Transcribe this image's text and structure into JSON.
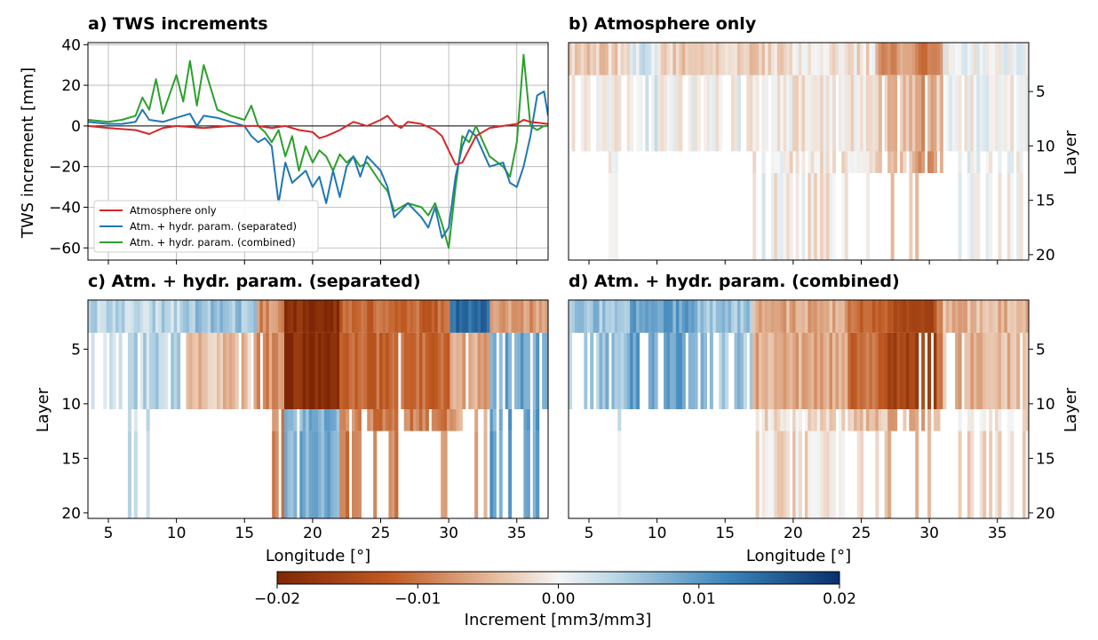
{
  "chart_data": [
    {
      "id": "a",
      "type": "line",
      "title": "a) TWS increments",
      "xlabel": "",
      "ylabel": "TWS increment [mm]",
      "xlim": [
        3.5,
        37.3
      ],
      "ylim": [
        -66,
        41
      ],
      "xticks": [
        5,
        10,
        15,
        20,
        25,
        30,
        35
      ],
      "yticks": [
        40,
        20,
        0,
        -20,
        -40,
        -60
      ],
      "ytick_labels": [
        "40",
        "20",
        "0",
        "−20",
        "−40",
        "−60"
      ],
      "grid": true,
      "zero_line": true,
      "legend_position": "lower-left",
      "series": [
        {
          "name": "Atmosphere only",
          "color": "#d62728",
          "x": [
            3.5,
            5,
            7,
            8,
            9,
            10,
            12,
            14,
            16,
            17,
            18,
            19,
            20,
            20.5,
            21,
            22,
            23,
            24,
            25,
            25.5,
            26,
            26.5,
            27,
            28,
            29,
            29.5,
            30,
            30.5,
            31,
            32,
            33,
            34,
            35,
            35.5,
            36,
            37.3
          ],
          "y": [
            0,
            -1,
            -2,
            -4,
            -1,
            0,
            -1,
            0,
            0,
            -1,
            0,
            -2,
            -3,
            -6,
            -5,
            -2,
            2,
            0,
            3,
            5,
            1,
            -1,
            2,
            1,
            -2,
            -5,
            -12,
            -19,
            -18,
            -5,
            -1,
            0,
            1,
            3,
            2,
            1
          ]
        },
        {
          "name": "Atm. + hydr. param. (separated)",
          "color": "#1f77b4",
          "x": [
            3.5,
            5,
            6,
            7,
            7.5,
            8,
            9,
            10,
            11,
            11.5,
            12,
            13,
            14,
            15,
            15.5,
            16,
            16.5,
            17,
            17.5,
            18,
            18.5,
            19,
            19.5,
            20,
            20.5,
            21,
            21.5,
            22,
            22.5,
            23,
            23.5,
            24,
            25,
            25.5,
            26,
            27,
            28,
            28.5,
            29,
            29.5,
            30,
            30.5,
            31,
            31.5,
            32,
            33,
            34,
            34.5,
            35,
            35.5,
            36,
            36.5,
            37,
            37.3
          ],
          "y": [
            2,
            1,
            1,
            2,
            8,
            3,
            2,
            4,
            6,
            0,
            5,
            4,
            2,
            0,
            -5,
            -8,
            -6,
            -10,
            -38,
            -18,
            -28,
            -25,
            -22,
            -30,
            -25,
            -38,
            -22,
            -35,
            -20,
            -15,
            -25,
            -15,
            -22,
            -30,
            -45,
            -38,
            -45,
            -50,
            -40,
            -55,
            -50,
            -25,
            -10,
            -2,
            -5,
            -20,
            -18,
            -28,
            -30,
            -20,
            -5,
            15,
            17,
            5
          ]
        },
        {
          "name": "Atm. + hydr. param. (combined)",
          "color": "#2ca02c",
          "x": [
            3.5,
            5,
            6,
            7,
            7.5,
            8,
            8.5,
            9,
            10,
            10.5,
            11,
            11.5,
            12,
            13,
            14,
            15,
            15.5,
            16,
            16.5,
            17,
            17.5,
            18,
            18.5,
            19,
            19.5,
            20,
            20.5,
            21,
            21.5,
            22,
            22.5,
            23,
            23.5,
            24,
            25,
            25.5,
            26,
            27,
            28,
            28.5,
            29,
            29.5,
            30,
            30.5,
            31,
            31.5,
            32,
            33,
            34,
            34.5,
            35,
            35.5,
            36,
            36.5,
            37,
            37.3
          ],
          "y": [
            3,
            2,
            3,
            5,
            14,
            8,
            23,
            6,
            25,
            12,
            32,
            10,
            30,
            8,
            5,
            3,
            10,
            0,
            -3,
            -8,
            -2,
            -15,
            -5,
            -22,
            -10,
            -18,
            -12,
            -15,
            -22,
            -14,
            -18,
            -15,
            -20,
            -18,
            -28,
            -32,
            -42,
            -38,
            -40,
            -44,
            -38,
            -48,
            -60,
            -30,
            -5,
            -8,
            0,
            -15,
            -20,
            -25,
            -8,
            35,
            0,
            -2,
            0,
            0
          ]
        }
      ]
    },
    {
      "id": "b",
      "type": "heatmap",
      "title": "b) Atmosphere only",
      "xlabel": "",
      "ylabel": "Layer",
      "xlim": [
        3.5,
        37.3
      ],
      "ylim": [
        20.5,
        0.5
      ],
      "xticks": [
        5,
        10,
        15,
        20,
        25,
        30,
        35
      ],
      "yticks": [
        5,
        10,
        15,
        20
      ],
      "ylabel_side": "right"
    },
    {
      "id": "c",
      "type": "heatmap",
      "title": "c) Atm. + hydr. param. (separated)",
      "xlabel": "Longitude [°]",
      "ylabel": "Layer",
      "xlim": [
        3.5,
        37.3
      ],
      "ylim": [
        20.5,
        0.5
      ],
      "xticks": [
        5,
        10,
        15,
        20,
        25,
        30,
        35
      ],
      "yticks": [
        5,
        10,
        15,
        20
      ],
      "ylabel_side": "left"
    },
    {
      "id": "d",
      "type": "heatmap",
      "title": "d) Atm. + hydr. param. (combined)",
      "xlabel": "Longitude [°]",
      "ylabel": "Layer",
      "xlim": [
        3.5,
        37.3
      ],
      "ylim": [
        20.5,
        0.5
      ],
      "xticks": [
        5,
        10,
        15,
        20,
        25,
        30,
        35
      ],
      "yticks": [
        5,
        10,
        15,
        20
      ],
      "ylabel_side": "right"
    }
  ],
  "colorbar": {
    "label": "Increment [mm3/mm3]",
    "range": [
      -0.02,
      0.02
    ],
    "ticks": [
      -0.02,
      -0.01,
      0.0,
      0.01,
      0.02
    ],
    "tick_labels": [
      "−0.02",
      "−0.01",
      "0.00",
      "0.01",
      "0.02"
    ],
    "colormap": "RdBu (brown-white-blue)",
    "color_low": "#7f2704",
    "color_mid": "#f7f7f7",
    "color_high": "#08306b"
  }
}
